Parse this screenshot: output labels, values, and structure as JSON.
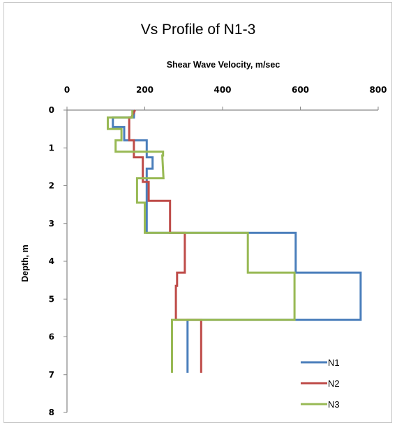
{
  "chart_data": {
    "type": "line",
    "title": "Vs Profile of N1-3",
    "xlabel": "Shear Wave Velocity, m/sec",
    "ylabel": "Depth, m",
    "x_position": "top",
    "y_inverted": true,
    "xlim": [
      0,
      800
    ],
    "ylim": [
      0,
      8
    ],
    "xticks": [
      "0",
      "200",
      "400",
      "600",
      "800"
    ],
    "yticks": [
      "0",
      "1",
      "2",
      "3",
      "4",
      "5",
      "6",
      "7",
      "8"
    ],
    "grid": false,
    "legend_position": "bottom-right",
    "series": [
      {
        "name": "N1",
        "color": "#4a7ebb",
        "points": [
          [
            173,
            0
          ],
          [
            172,
            0.2
          ],
          [
            118,
            0.2
          ],
          [
            118,
            0.45
          ],
          [
            147,
            0.45
          ],
          [
            147,
            0.8
          ],
          [
            205,
            0.8
          ],
          [
            205,
            1.25
          ],
          [
            220,
            1.25
          ],
          [
            220,
            1.55
          ],
          [
            205,
            1.55
          ],
          [
            205,
            3.25
          ],
          [
            588,
            3.25
          ],
          [
            588,
            4.3
          ],
          [
            755,
            4.3
          ],
          [
            755,
            5.55
          ],
          [
            310,
            5.55
          ],
          [
            310,
            6.95
          ]
        ]
      },
      {
        "name": "N2",
        "color": "#be4b48",
        "points": [
          [
            175,
            0
          ],
          [
            165,
            0.2
          ],
          [
            160,
            0.2
          ],
          [
            160,
            0.45
          ],
          [
            160,
            0.8
          ],
          [
            172,
            0.8
          ],
          [
            172,
            1.25
          ],
          [
            195,
            1.25
          ],
          [
            195,
            1.9
          ],
          [
            210,
            1.9
          ],
          [
            210,
            2.4
          ],
          [
            265,
            2.4
          ],
          [
            265,
            3.25
          ],
          [
            303,
            3.25
          ],
          [
            303,
            4.3
          ],
          [
            283,
            4.3
          ],
          [
            283,
            4.65
          ],
          [
            280,
            4.65
          ],
          [
            280,
            5.55
          ],
          [
            345,
            5.55
          ],
          [
            345,
            6.95
          ]
        ]
      },
      {
        "name": "N3",
        "color": "#98b954",
        "points": [
          [
            168,
            0
          ],
          [
            168,
            0.2
          ],
          [
            105,
            0.2
          ],
          [
            105,
            0.5
          ],
          [
            140,
            0.5
          ],
          [
            140,
            0.8
          ],
          [
            125,
            0.8
          ],
          [
            125,
            1.1
          ],
          [
            247,
            1.1
          ],
          [
            247,
            1.2
          ],
          [
            245,
            1.2
          ],
          [
            248,
            1.8
          ],
          [
            180,
            1.8
          ],
          [
            180,
            2.45
          ],
          [
            200,
            2.45
          ],
          [
            200,
            3.25
          ],
          [
            465,
            3.25
          ],
          [
            465,
            4.3
          ],
          [
            585,
            4.3
          ],
          [
            585,
            5.55
          ],
          [
            270,
            5.55
          ],
          [
            270,
            6.95
          ]
        ]
      }
    ]
  }
}
